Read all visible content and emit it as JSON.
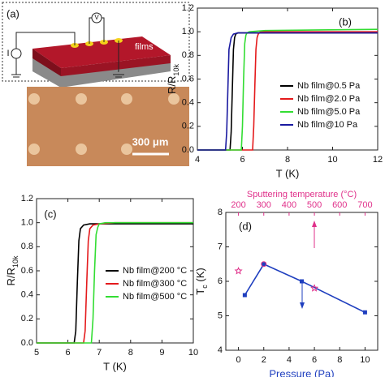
{
  "panel_a": {
    "label": "(a)",
    "voltage": "V",
    "current": "I",
    "films": "films",
    "scale_bar": "300 μm"
  },
  "chart_data": [
    {
      "type": "line",
      "panel_label": "(b)",
      "xlabel": "T (K)",
      "ylabel": [
        "R/R",
        "10k"
      ],
      "xlim": [
        4,
        12
      ],
      "xticks": [
        4,
        6,
        8,
        10,
        12
      ],
      "ylim": [
        0,
        1.2
      ],
      "yticks": [
        {
          "value": 0,
          "label": "0.0"
        },
        {
          "value": 0.2,
          "label": "0.2"
        },
        {
          "value": 0.4,
          "label": "0.4"
        },
        {
          "value": 0.6,
          "label": "0.6"
        },
        {
          "value": 0.8,
          "label": "0.8"
        },
        {
          "value": 1.0,
          "label": "1.0"
        },
        {
          "value": 1.2,
          "label": "1.2"
        }
      ],
      "legend": "lower right",
      "series": [
        {
          "name": "Nb film@0.5 Pa",
          "color": "#000000",
          "x": [
            4,
            5.45,
            5.5,
            5.55,
            5.6,
            5.65,
            5.7,
            5.8,
            6,
            12
          ],
          "values": [
            0,
            0,
            0.15,
            0.5,
            0.85,
            0.95,
            0.98,
            0.99,
            0.99,
            0.99
          ]
        },
        {
          "name": "Nb film@2.0 Pa",
          "color": "#e41a1c",
          "x": [
            4,
            6.45,
            6.5,
            6.55,
            6.6,
            6.65,
            6.7,
            6.8,
            7,
            12
          ],
          "values": [
            0,
            0,
            0.2,
            0.55,
            0.85,
            0.95,
            0.98,
            1.0,
            1.0,
            1.0
          ]
        },
        {
          "name": "Nb film@5.0 Pa",
          "color": "#33dd33",
          "x": [
            4,
            5.95,
            6.0,
            6.05,
            6.1,
            6.15,
            6.2,
            6.3,
            7,
            12
          ],
          "values": [
            0,
            0,
            0.2,
            0.6,
            0.9,
            0.97,
            0.99,
            1.0,
            1.01,
            1.02
          ]
        },
        {
          "name": "Nb film@10 Pa",
          "color": "#1a1aa0",
          "x": [
            4,
            5.25,
            5.3,
            5.35,
            5.4,
            5.5,
            5.6,
            5.8,
            7,
            12
          ],
          "values": [
            0,
            0,
            0.15,
            0.5,
            0.85,
            0.95,
            0.98,
            0.99,
            0.99,
            0.99
          ]
        }
      ]
    },
    {
      "type": "line",
      "panel_label": "(c)",
      "xlabel": "T (K)",
      "ylabel": [
        "R/R",
        "10k"
      ],
      "xlim": [
        5,
        10
      ],
      "xticks": [
        5,
        6,
        7,
        8,
        9,
        10
      ],
      "ylim": [
        0,
        1.2
      ],
      "yticks": [
        {
          "value": 0,
          "label": "0.0"
        },
        {
          "value": 0.2,
          "label": "0.2"
        },
        {
          "value": 0.4,
          "label": "0.4"
        },
        {
          "value": 0.6,
          "label": "0.6"
        },
        {
          "value": 0.8,
          "label": "0.8"
        },
        {
          "value": 1.0,
          "label": "1.0"
        },
        {
          "value": 1.2,
          "label": "1.2"
        }
      ],
      "legend": "lower right",
      "series": [
        {
          "name": "Nb film@200 °C",
          "color": "#000000",
          "x": [
            5,
            6.2,
            6.25,
            6.3,
            6.35,
            6.4,
            6.5,
            6.7,
            7,
            10
          ],
          "values": [
            0,
            0,
            0.1,
            0.5,
            0.85,
            0.95,
            0.98,
            0.99,
            0.99,
            0.99
          ]
        },
        {
          "name": "Nb film@300 °C",
          "color": "#e41a1c",
          "x": [
            5,
            6.5,
            6.55,
            6.6,
            6.65,
            6.7,
            6.8,
            7,
            7.5,
            10
          ],
          "values": [
            0,
            0,
            0.1,
            0.5,
            0.85,
            0.95,
            0.98,
            0.99,
            1.0,
            1.0
          ]
        },
        {
          "name": "Nb film@500 °C",
          "color": "#33dd33",
          "x": [
            5,
            6.75,
            6.8,
            6.85,
            6.9,
            6.95,
            7,
            7.2,
            7.5,
            10
          ],
          "values": [
            0,
            0,
            0.2,
            0.6,
            0.9,
            0.96,
            0.99,
            1.0,
            1.0,
            1.0
          ]
        }
      ]
    },
    {
      "type": "line",
      "panel_label": "(d)",
      "xlabel": "Pressure (Pa)",
      "ylabel": [
        "T",
        "c",
        " (K)"
      ],
      "xlim": [
        -1,
        11
      ],
      "xticks": [
        0,
        2,
        4,
        6,
        8,
        10
      ],
      "x2label": "Sputtering temperature (°C)",
      "x2color": "#e0308a",
      "x2lim": [
        150,
        750
      ],
      "x2ticks": [
        200,
        300,
        400,
        500,
        600,
        700
      ],
      "ylim": [
        4,
        8
      ],
      "yticks": [
        4,
        5,
        6,
        7,
        8
      ],
      "series": [
        {
          "color": "#1f3fbf",
          "x": [
            0.5,
            2,
            5,
            10
          ],
          "values": [
            5.6,
            6.5,
            6.0,
            5.1
          ],
          "marker": "square"
        },
        {
          "color": "#e0308a",
          "axis": "x2",
          "x": [
            200,
            300,
            500
          ],
          "values": [
            6.3,
            6.5,
            5.8
          ],
          "markers": [
            "star",
            "circle",
            "star"
          ],
          "line": false
        }
      ]
    }
  ]
}
